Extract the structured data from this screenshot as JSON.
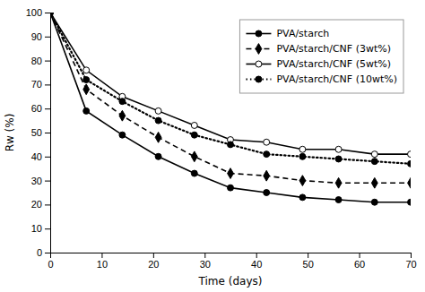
{
  "chart_data": {
    "type": "line",
    "xlabel": "Time (days)",
    "ylabel": "Rw (%)",
    "x": [
      0,
      7,
      14,
      21,
      28,
      35,
      42,
      49,
      56,
      63,
      70
    ],
    "xlim": [
      0,
      70
    ],
    "ylim": [
      0,
      100
    ],
    "xticks": [
      0,
      10,
      20,
      30,
      40,
      50,
      60,
      70
    ],
    "yticks": [
      0,
      10,
      20,
      30,
      40,
      50,
      60,
      70,
      80,
      90,
      100
    ],
    "grid": false,
    "legend": "upper right",
    "series": [
      {
        "name": "PVA/starch",
        "color": "black",
        "marker": "circle",
        "line_style": "solid",
        "values": [
          100,
          59,
          49,
          40,
          33,
          27,
          25,
          23,
          22,
          21,
          21
        ]
      },
      {
        "name": "PVA/starch/CNF (3wt%)",
        "color": "black",
        "marker": "diamond",
        "line_style": "dashed",
        "values": [
          100,
          68,
          57,
          48,
          40,
          33,
          32,
          30,
          29,
          29,
          29
        ]
      },
      {
        "name": "PVA/starch/CNF (5wt%)",
        "color": "black",
        "marker": "circle-open",
        "line_style": "solid",
        "values": [
          100,
          76,
          65,
          59,
          53,
          47,
          46,
          43,
          43,
          41,
          41
        ]
      },
      {
        "name": "PVA/starch/CNF (10wt%)",
        "color": "black",
        "marker": "circle",
        "line_style": "dotted",
        "values": [
          100,
          72,
          63,
          55,
          49,
          45,
          41,
          40,
          39,
          38,
          37
        ]
      }
    ]
  }
}
